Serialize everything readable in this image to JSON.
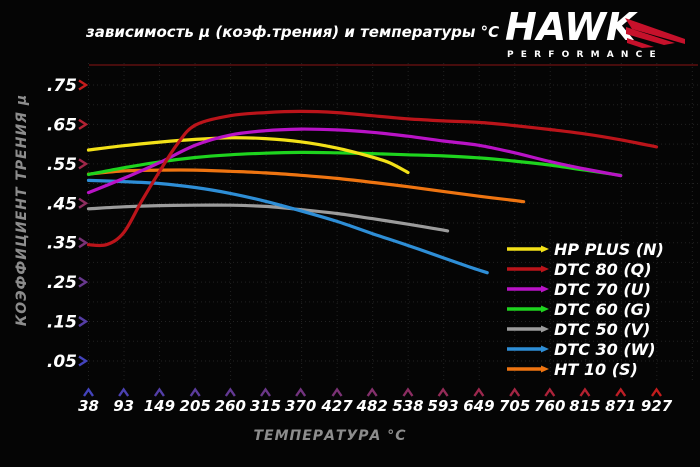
{
  "title": "зависимость µ (коэф.трения) и температуры °C",
  "logo": {
    "brand": "HAWK",
    "tagline": "PERFORMANCE",
    "red": "#c6112b"
  },
  "chart_data": {
    "type": "line",
    "title": "зависимость µ (коэф.трения) и температуры °C",
    "xlabel": "ТЕМПЕРАТУРА °C",
    "ylabel": "КОЭФФИЦИЕНТ ТРЕНИЯ µ",
    "x_ticks": [
      38,
      93,
      149,
      205,
      260,
      315,
      370,
      427,
      482,
      538,
      593,
      649,
      705,
      760,
      815,
      871,
      927
    ],
    "y_tick_labels": [
      ".75",
      ".65",
      ".55",
      ".45",
      ".35",
      ".25",
      ".15",
      ".05"
    ],
    "y_tick_values": [
      0.75,
      0.65,
      0.55,
      0.45,
      0.35,
      0.25,
      0.15,
      0.05
    ],
    "ylim": [
      0,
      0.8
    ],
    "xlim": [
      38,
      927
    ],
    "grid": true,
    "legend_position": "right-bottom",
    "series": [
      {
        "name": "HP PLUS (N)",
        "color": "#f3e118",
        "points": [
          [
            38,
            0.585
          ],
          [
            93,
            0.596
          ],
          [
            149,
            0.605
          ],
          [
            205,
            0.612
          ],
          [
            260,
            0.616
          ],
          [
            315,
            0.614
          ],
          [
            370,
            0.606
          ],
          [
            427,
            0.59
          ],
          [
            482,
            0.567
          ],
          [
            510,
            0.552
          ],
          [
            538,
            0.528
          ]
        ]
      },
      {
        "name": "DTC 80 (Q)",
        "color": "#bb141a",
        "points": [
          [
            38,
            0.345
          ],
          [
            66,
            0.345
          ],
          [
            93,
            0.375
          ],
          [
            121,
            0.455
          ],
          [
            149,
            0.53
          ],
          [
            177,
            0.6
          ],
          [
            205,
            0.648
          ],
          [
            260,
            0.672
          ],
          [
            315,
            0.68
          ],
          [
            370,
            0.683
          ],
          [
            427,
            0.68
          ],
          [
            482,
            0.672
          ],
          [
            538,
            0.664
          ],
          [
            593,
            0.659
          ],
          [
            649,
            0.655
          ],
          [
            705,
            0.647
          ],
          [
            760,
            0.637
          ],
          [
            815,
            0.626
          ],
          [
            871,
            0.611
          ],
          [
            927,
            0.593
          ]
        ]
      },
      {
        "name": "DTC 70 (U)",
        "color": "#b913c6",
        "points": [
          [
            38,
            0.477
          ],
          [
            93,
            0.513
          ],
          [
            149,
            0.553
          ],
          [
            205,
            0.597
          ],
          [
            260,
            0.623
          ],
          [
            315,
            0.634
          ],
          [
            370,
            0.638
          ],
          [
            427,
            0.636
          ],
          [
            482,
            0.63
          ],
          [
            538,
            0.62
          ],
          [
            593,
            0.608
          ],
          [
            649,
            0.597
          ],
          [
            705,
            0.578
          ],
          [
            760,
            0.556
          ],
          [
            815,
            0.537
          ],
          [
            871,
            0.52
          ]
        ]
      },
      {
        "name": "DTC 60 (G)",
        "color": "#1ed41e",
        "points": [
          [
            38,
            0.523
          ],
          [
            93,
            0.54
          ],
          [
            149,
            0.555
          ],
          [
            205,
            0.566
          ],
          [
            260,
            0.573
          ],
          [
            315,
            0.577
          ],
          [
            370,
            0.579
          ],
          [
            427,
            0.578
          ],
          [
            482,
            0.576
          ],
          [
            538,
            0.573
          ],
          [
            593,
            0.57
          ],
          [
            649,
            0.565
          ],
          [
            705,
            0.557
          ],
          [
            760,
            0.547
          ],
          [
            815,
            0.534
          ],
          [
            871,
            0.521
          ]
        ]
      },
      {
        "name": "DTC 50 (V)",
        "color": "#9c9c9c",
        "points": [
          [
            38,
            0.436
          ],
          [
            93,
            0.441
          ],
          [
            149,
            0.444
          ],
          [
            205,
            0.445
          ],
          [
            260,
            0.445
          ],
          [
            315,
            0.442
          ],
          [
            370,
            0.434
          ],
          [
            427,
            0.424
          ],
          [
            482,
            0.411
          ],
          [
            538,
            0.397
          ],
          [
            571,
            0.388
          ],
          [
            600,
            0.38
          ]
        ]
      },
      {
        "name": "DTC 30 (W)",
        "color": "#2e8ed6",
        "points": [
          [
            38,
            0.508
          ],
          [
            93,
            0.505
          ],
          [
            149,
            0.5
          ],
          [
            205,
            0.49
          ],
          [
            260,
            0.475
          ],
          [
            315,
            0.455
          ],
          [
            370,
            0.431
          ],
          [
            427,
            0.404
          ],
          [
            482,
            0.373
          ],
          [
            538,
            0.343
          ],
          [
            593,
            0.312
          ],
          [
            635,
            0.288
          ],
          [
            662,
            0.274
          ]
        ]
      },
      {
        "name": "HT 10 (S)",
        "color": "#ee7411",
        "points": [
          [
            38,
            0.524
          ],
          [
            93,
            0.532
          ],
          [
            149,
            0.534
          ],
          [
            205,
            0.534
          ],
          [
            260,
            0.531
          ],
          [
            315,
            0.527
          ],
          [
            370,
            0.521
          ],
          [
            427,
            0.513
          ],
          [
            482,
            0.503
          ],
          [
            538,
            0.492
          ],
          [
            593,
            0.48
          ],
          [
            649,
            0.468
          ],
          [
            705,
            0.457
          ],
          [
            719,
            0.454
          ]
        ]
      }
    ],
    "axis_colors": {
      "hot": "#c41c1c",
      "cold": "#4343bb",
      "frame_top": "#470c0c"
    },
    "grid_color": "#222222",
    "text_color": "#ffffff",
    "muted_text_color": "#8d8d8d"
  }
}
